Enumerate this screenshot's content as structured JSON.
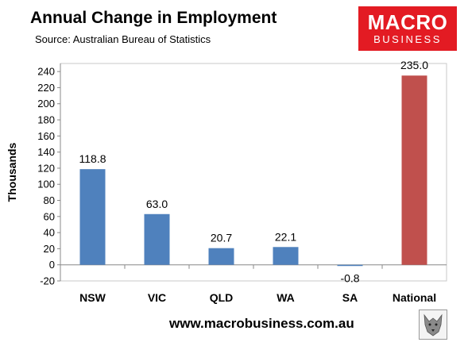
{
  "title": "Annual Change in Employment",
  "subtitle": "Source: Australian Bureau of Statistics",
  "logo": {
    "line1": "MACRO",
    "line2": "BUSINESS"
  },
  "footer": "www.macrobusiness.com.au",
  "chart_data": {
    "type": "bar",
    "categories": [
      "NSW",
      "VIC",
      "QLD",
      "WA",
      "SA",
      "National"
    ],
    "values": [
      118.8,
      63.0,
      20.7,
      22.1,
      -0.8,
      235.0
    ],
    "data_labels": [
      "118.8",
      "63.0",
      "20.7",
      "22.1",
      "-0.8",
      "235.0"
    ],
    "ylabel": "Thousands",
    "xlabel": "",
    "ylim": [
      -20,
      240
    ],
    "yticks": [
      -20,
      0,
      20,
      40,
      60,
      80,
      100,
      120,
      140,
      160,
      180,
      200,
      220,
      240
    ],
    "grid": false,
    "colors": [
      "#4f81bd",
      "#4f81bd",
      "#4f81bd",
      "#4f81bd",
      "#4f81bd",
      "#c0504d"
    ]
  }
}
